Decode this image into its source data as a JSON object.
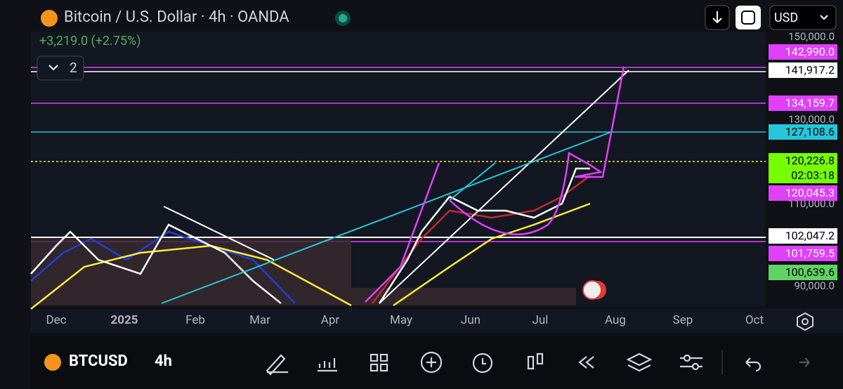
{
  "header": {
    "title": "Bitcoin / U.S. Dollar · 4h · OANDA",
    "change": "+3,219.0 (+2.75%)",
    "indicators": "2",
    "currency": "USD"
  },
  "price_scale": {
    "grid_labels": [
      "150,000.0",
      "130,000.0",
      "110,000.0",
      "90,000.0"
    ],
    "levels": [
      "142,990.0",
      "141,917.2",
      "134,159.7",
      "127,108.6",
      "120,226.8",
      "02:03:18",
      "120,045.3",
      "102,047.2",
      "101,759.5",
      "100,639.6"
    ]
  },
  "time_axis": [
    "Dec",
    "2025",
    "Feb",
    "Mar",
    "Apr",
    "May",
    "Jun",
    "Jul",
    "Aug",
    "Sep",
    "Oct"
  ],
  "toolbar": {
    "symbol": "BTCUSD",
    "interval": "4h"
  }
}
